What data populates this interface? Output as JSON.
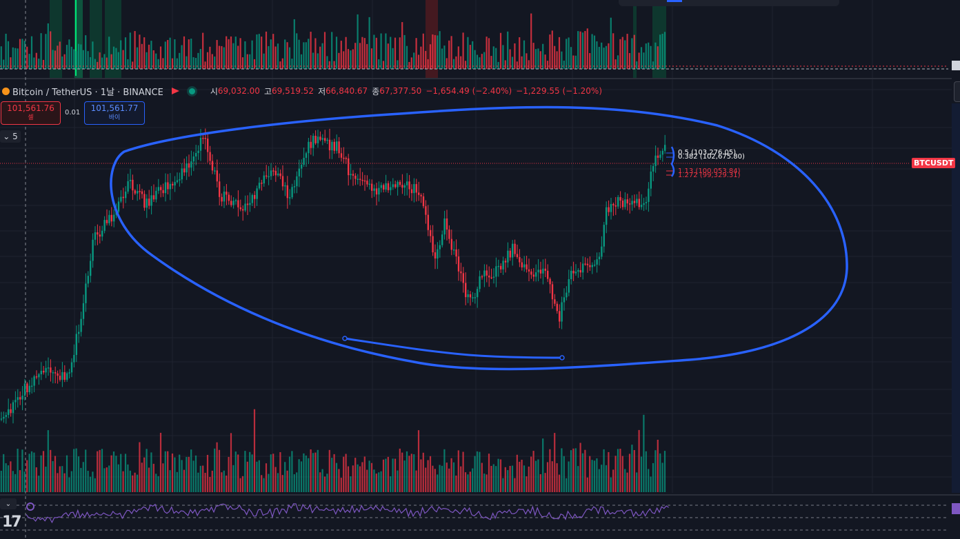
{
  "legend": {
    "symbol": "Bitcoin / TetherUS · 1날 · BINANCE",
    "open_label": "시",
    "open": "69,032.00",
    "high_label": "고",
    "high": "69,519.52",
    "low_label": "저",
    "low": "66,840.67",
    "close_label": "종",
    "close": "67,377.50",
    "change": "−1,654.49 (−2.40%)",
    "change2": "−1,229.55 (−1.20%)"
  },
  "trade": {
    "sell_price": "101,561.76",
    "sell_label": "셀",
    "spread": "0.01",
    "buy_price": "101,561.77",
    "buy_label": "바이"
  },
  "panel_toggle": "5",
  "symbol_tag": "BTCUSDT",
  "fib_levels": [
    {
      "label": "0.5 (103,276.05)",
      "color": "#ffffff"
    },
    {
      "label": "0.382 (102,675.80)",
      "color": "#ffffff"
    },
    {
      "label": "1.13 (100,053.84)",
      "color": "#f23645"
    },
    {
      "label": "1.272 (99,329.31)",
      "color": "#f23645"
    }
  ],
  "colors": {
    "up": "#089981",
    "down": "#f23645",
    "drawing": "#2962ff",
    "rsi": "#7e57c2"
  },
  "chart_data": {
    "type": "candlestick",
    "note": "BTC/USDT daily candles with volume and RSI panes",
    "price_trend": [
      62000,
      71000,
      98000,
      96000,
      107000,
      96000,
      78000,
      86000,
      76000,
      95000,
      103000
    ]
  }
}
